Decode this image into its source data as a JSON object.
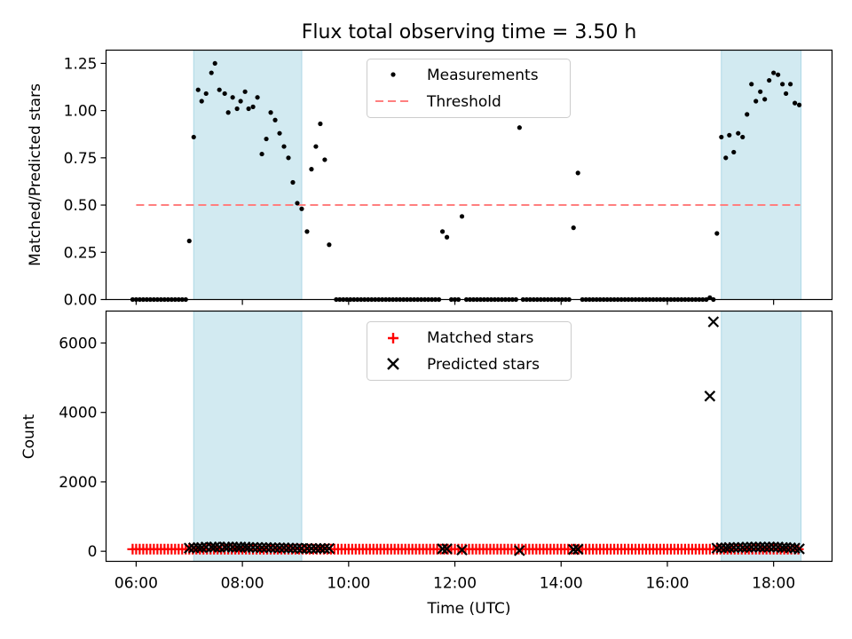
{
  "chart_data": [
    {
      "type": "scatter",
      "title": "Flux total observing time = 3.50 h",
      "xlabel": "",
      "ylabel": "Matched/Predicted stars",
      "xlim": [
        "05:26",
        "19:06"
      ],
      "ylim": [
        0,
        1.32
      ],
      "ytick_labels": [
        "0.00",
        "0.25",
        "0.50",
        "0.75",
        "1.00",
        "1.25"
      ],
      "ytick_values": [
        0,
        0.25,
        0.5,
        0.75,
        1.0,
        1.25
      ],
      "xtick_values": [
        "06:00",
        "08:00",
        "10:00",
        "12:00",
        "14:00",
        "16:00",
        "18:00"
      ],
      "shaded_spans": [
        [
          "07:05",
          "09:07"
        ],
        [
          "17:01",
          "18:31"
        ]
      ],
      "shade_color": "#add8e6",
      "legend": {
        "placement": "top-center",
        "entries": [
          {
            "label": "Measurements",
            "marker": "dot",
            "color": "#000000"
          },
          {
            "label": "Threshold",
            "marker": "dashed-line",
            "color": "#ff7f7f"
          }
        ]
      },
      "threshold": {
        "name": "Threshold",
        "value": 0.5,
        "x_range": [
          "06:00",
          "18:30"
        ],
        "color": "#ff7f7f"
      },
      "series": [
        {
          "name": "Measurements",
          "color": "#000000",
          "points": [
            [
              "05:56",
              0
            ],
            [
              "06:00",
              0
            ],
            [
              "06:04",
              0
            ],
            [
              "06:08",
              0
            ],
            [
              "06:12",
              0
            ],
            [
              "06:16",
              0
            ],
            [
              "06:20",
              0
            ],
            [
              "06:24",
              0
            ],
            [
              "06:28",
              0
            ],
            [
              "06:32",
              0
            ],
            [
              "06:36",
              0
            ],
            [
              "06:40",
              0
            ],
            [
              "06:44",
              0
            ],
            [
              "06:48",
              0
            ],
            [
              "06:52",
              0
            ],
            [
              "06:56",
              0
            ],
            [
              "07:00",
              0.31
            ],
            [
              "07:05",
              0.86
            ],
            [
              "07:10",
              1.11
            ],
            [
              "07:14",
              1.05
            ],
            [
              "07:19",
              1.09
            ],
            [
              "07:25",
              1.2
            ],
            [
              "07:29",
              1.25
            ],
            [
              "07:34",
              1.11
            ],
            [
              "07:40",
              1.09
            ],
            [
              "07:44",
              0.99
            ],
            [
              "07:49",
              1.07
            ],
            [
              "07:54",
              1.01
            ],
            [
              "07:58",
              1.05
            ],
            [
              "08:03",
              1.1
            ],
            [
              "08:07",
              1.01
            ],
            [
              "08:12",
              1.02
            ],
            [
              "08:17",
              1.07
            ],
            [
              "08:22",
              0.77
            ],
            [
              "08:27",
              0.85
            ],
            [
              "08:32",
              0.99
            ],
            [
              "08:37",
              0.95
            ],
            [
              "08:42",
              0.88
            ],
            [
              "08:47",
              0.81
            ],
            [
              "08:52",
              0.75
            ],
            [
              "08:57",
              0.62
            ],
            [
              "09:02",
              0.51
            ],
            [
              "09:07",
              0.48
            ],
            [
              "09:13",
              0.36
            ],
            [
              "09:18",
              0.69
            ],
            [
              "09:23",
              0.81
            ],
            [
              "09:28",
              0.93
            ],
            [
              "09:33",
              0.74
            ],
            [
              "09:38",
              0.29
            ],
            [
              "09:46",
              0
            ],
            [
              "09:50",
              0
            ],
            [
              "09:54",
              0
            ],
            [
              "09:58",
              0
            ],
            [
              "10:02",
              0
            ],
            [
              "10:06",
              0
            ],
            [
              "10:10",
              0
            ],
            [
              "10:14",
              0
            ],
            [
              "10:18",
              0
            ],
            [
              "10:22",
              0
            ],
            [
              "10:26",
              0
            ],
            [
              "10:30",
              0
            ],
            [
              "10:34",
              0
            ],
            [
              "10:38",
              0
            ],
            [
              "10:42",
              0
            ],
            [
              "10:46",
              0
            ],
            [
              "10:50",
              0
            ],
            [
              "10:54",
              0
            ],
            [
              "10:58",
              0
            ],
            [
              "11:02",
              0
            ],
            [
              "11:06",
              0
            ],
            [
              "11:10",
              0
            ],
            [
              "11:14",
              0
            ],
            [
              "11:18",
              0
            ],
            [
              "11:22",
              0
            ],
            [
              "11:26",
              0
            ],
            [
              "11:30",
              0
            ],
            [
              "11:34",
              0
            ],
            [
              "11:38",
              0
            ],
            [
              "11:42",
              0
            ],
            [
              "11:46",
              0.36
            ],
            [
              "11:51",
              0.33
            ],
            [
              "11:56",
              0
            ],
            [
              "12:00",
              0
            ],
            [
              "12:04",
              0
            ],
            [
              "12:08",
              0.44
            ],
            [
              "12:13",
              0
            ],
            [
              "12:17",
              0
            ],
            [
              "12:21",
              0
            ],
            [
              "12:25",
              0
            ],
            [
              "12:29",
              0
            ],
            [
              "12:33",
              0
            ],
            [
              "12:37",
              0
            ],
            [
              "12:41",
              0
            ],
            [
              "12:45",
              0
            ],
            [
              "12:49",
              0
            ],
            [
              "12:53",
              0
            ],
            [
              "12:57",
              0
            ],
            [
              "13:01",
              0
            ],
            [
              "13:05",
              0
            ],
            [
              "13:09",
              0
            ],
            [
              "13:13",
              0.91
            ],
            [
              "13:17",
              0
            ],
            [
              "13:21",
              0
            ],
            [
              "13:25",
              0
            ],
            [
              "13:29",
              0
            ],
            [
              "13:33",
              0
            ],
            [
              "13:37",
              0
            ],
            [
              "13:41",
              0
            ],
            [
              "13:45",
              0
            ],
            [
              "13:49",
              0
            ],
            [
              "13:53",
              0
            ],
            [
              "13:57",
              0
            ],
            [
              "14:01",
              0
            ],
            [
              "14:05",
              0
            ],
            [
              "14:09",
              0
            ],
            [
              "14:14",
              0.38
            ],
            [
              "14:19",
              0.67
            ],
            [
              "14:24",
              0
            ],
            [
              "14:28",
              0
            ],
            [
              "14:32",
              0
            ],
            [
              "14:36",
              0
            ],
            [
              "14:40",
              0
            ],
            [
              "14:44",
              0
            ],
            [
              "14:48",
              0
            ],
            [
              "14:52",
              0
            ],
            [
              "14:56",
              0
            ],
            [
              "15:00",
              0
            ],
            [
              "15:04",
              0
            ],
            [
              "15:08",
              0
            ],
            [
              "15:12",
              0
            ],
            [
              "15:16",
              0
            ],
            [
              "15:20",
              0
            ],
            [
              "15:24",
              0
            ],
            [
              "15:28",
              0
            ],
            [
              "15:32",
              0
            ],
            [
              "15:36",
              0
            ],
            [
              "15:40",
              0
            ],
            [
              "15:44",
              0
            ],
            [
              "15:48",
              0
            ],
            [
              "15:52",
              0
            ],
            [
              "15:56",
              0
            ],
            [
              "16:00",
              0
            ],
            [
              "16:04",
              0
            ],
            [
              "16:08",
              0
            ],
            [
              "16:12",
              0
            ],
            [
              "16:16",
              0
            ],
            [
              "16:20",
              0
            ],
            [
              "16:24",
              0
            ],
            [
              "16:28",
              0
            ],
            [
              "16:32",
              0
            ],
            [
              "16:36",
              0
            ],
            [
              "16:40",
              0
            ],
            [
              "16:44",
              0
            ],
            [
              "16:48",
              0.01
            ],
            [
              "16:52",
              0
            ],
            [
              "16:56",
              0.35
            ],
            [
              "17:01",
              0.86
            ],
            [
              "17:06",
              0.75
            ],
            [
              "17:10",
              0.87
            ],
            [
              "17:15",
              0.78
            ],
            [
              "17:20",
              0.88
            ],
            [
              "17:25",
              0.86
            ],
            [
              "17:30",
              0.98
            ],
            [
              "17:35",
              1.14
            ],
            [
              "17:40",
              1.05
            ],
            [
              "17:45",
              1.1
            ],
            [
              "17:50",
              1.06
            ],
            [
              "17:55",
              1.16
            ],
            [
              "18:00",
              1.2
            ],
            [
              "18:05",
              1.19
            ],
            [
              "18:10",
              1.14
            ],
            [
              "18:14",
              1.09
            ],
            [
              "18:19",
              1.14
            ],
            [
              "18:24",
              1.04
            ],
            [
              "18:29",
              1.03
            ]
          ]
        }
      ]
    },
    {
      "type": "scatter",
      "title": "",
      "xlabel": "Time (UTC)",
      "ylabel": "Count",
      "xlim": [
        "05:26",
        "19:06"
      ],
      "ylim": [
        -290,
        6920
      ],
      "ytick_labels": [
        "0",
        "2000",
        "4000",
        "6000"
      ],
      "ytick_values": [
        0,
        2000,
        4000,
        6000
      ],
      "xtick_labels": [
        "06:00",
        "08:00",
        "10:00",
        "12:00",
        "14:00",
        "16:00",
        "18:00"
      ],
      "xtick_values": [
        "06:00",
        "08:00",
        "10:00",
        "12:00",
        "14:00",
        "16:00",
        "18:00"
      ],
      "shaded_spans": [
        [
          "07:05",
          "09:07"
        ],
        [
          "17:01",
          "18:31"
        ]
      ],
      "shade_color": "#add8e6",
      "legend": {
        "placement": "top-center",
        "entries": [
          {
            "label": "Matched stars",
            "marker": "plus",
            "color": "#ff0000"
          },
          {
            "label": "Predicted stars",
            "marker": "x",
            "color": "#000000"
          }
        ]
      },
      "series": [
        {
          "name": "Matched stars",
          "marker": "plus",
          "color": "#ff0000",
          "x_start": "05:56",
          "x_end": "18:31",
          "x_step_minutes": 4,
          "value": 60
        },
        {
          "name": "Predicted stars",
          "marker": "x",
          "color": "#000000",
          "points": [
            [
              "07:00",
              90
            ],
            [
              "07:05",
              100
            ],
            [
              "07:10",
              110
            ],
            [
              "07:14",
              110
            ],
            [
              "07:19",
              120
            ],
            [
              "07:25",
              120
            ],
            [
              "07:29",
              120
            ],
            [
              "07:34",
              120
            ],
            [
              "07:40",
              120
            ],
            [
              "07:44",
              120
            ],
            [
              "07:49",
              120
            ],
            [
              "07:54",
              120
            ],
            [
              "07:58",
              120
            ],
            [
              "08:03",
              120
            ],
            [
              "08:07",
              110
            ],
            [
              "08:12",
              110
            ],
            [
              "08:17",
              110
            ],
            [
              "08:22",
              110
            ],
            [
              "08:27",
              110
            ],
            [
              "08:32",
              100
            ],
            [
              "08:37",
              100
            ],
            [
              "08:42",
              100
            ],
            [
              "08:47",
              100
            ],
            [
              "08:52",
              90
            ],
            [
              "08:57",
              90
            ],
            [
              "09:02",
              90
            ],
            [
              "09:07",
              80
            ],
            [
              "09:13",
              80
            ],
            [
              "09:18",
              80
            ],
            [
              "09:23",
              80
            ],
            [
              "09:28",
              80
            ],
            [
              "09:33",
              80
            ],
            [
              "09:38",
              80
            ],
            [
              "11:46",
              70
            ],
            [
              "11:51",
              70
            ],
            [
              "12:08",
              40
            ],
            [
              "13:13",
              20
            ],
            [
              "14:14",
              50
            ],
            [
              "14:19",
              60
            ],
            [
              "16:48",
              4470
            ],
            [
              "16:52",
              6610
            ],
            [
              "16:56",
              90
            ],
            [
              "17:01",
              100
            ],
            [
              "17:06",
              100
            ],
            [
              "17:10",
              110
            ],
            [
              "17:15",
              110
            ],
            [
              "17:20",
              110
            ],
            [
              "17:25",
              110
            ],
            [
              "17:30",
              120
            ],
            [
              "17:35",
              120
            ],
            [
              "17:40",
              120
            ],
            [
              "17:45",
              120
            ],
            [
              "17:50",
              120
            ],
            [
              "17:55",
              120
            ],
            [
              "18:00",
              120
            ],
            [
              "18:05",
              120
            ],
            [
              "18:10",
              110
            ],
            [
              "18:14",
              110
            ],
            [
              "18:19",
              100
            ],
            [
              "18:24",
              90
            ],
            [
              "18:29",
              70
            ]
          ]
        }
      ]
    }
  ]
}
